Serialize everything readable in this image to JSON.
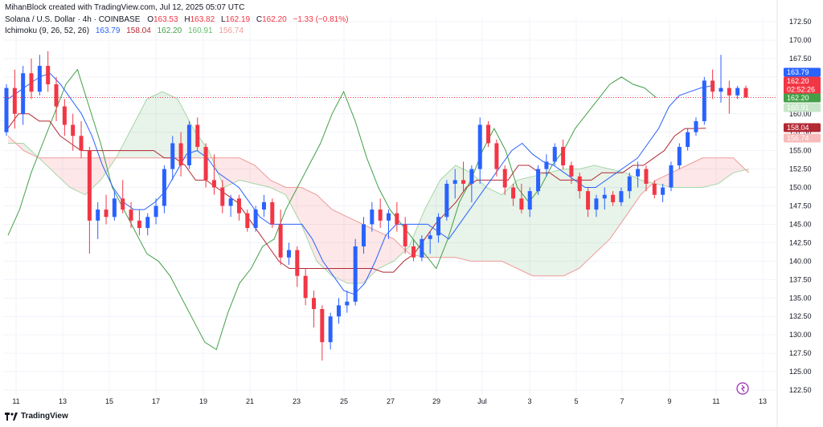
{
  "header": {
    "created_by": "MihanBlock created with TradingView.com, Jul 12, 2025 05:07 UTC",
    "symbol": "Solana / U.S. Dollar · 4h · COINBASE",
    "ohlc": {
      "o_label": "O",
      "o": "163.53",
      "h_label": "H",
      "h": "163.82",
      "l_label": "L",
      "l": "162.19",
      "c_label": "C",
      "c": "162.20",
      "change": "−1.33 (−0.81%)"
    },
    "indicator": {
      "name": "Ichimoku (9, 26, 52, 26)",
      "v1": "163.79",
      "v2": "158.04",
      "v3": "162.20",
      "v4": "160.91",
      "v5": "156.74"
    }
  },
  "footer": {
    "brand": "TradingView"
  },
  "price_tags": {
    "conversion": "163.79",
    "last": "162.20",
    "countdown": "02:52:26",
    "lagging": "162.20",
    "span_a": "160.91",
    "base": "158.04",
    "span_b": "156.74"
  },
  "colors": {
    "up": "#2962ff",
    "down": "#f23645",
    "conversion": "#2962ff",
    "base": "#b22833",
    "lagging": "#43a047",
    "span_a": "#a5d6a7",
    "span_b": "#ef9a9a",
    "cloud_bull": "#43a047",
    "cloud_bear": "#f23645",
    "tag_conversion": "#2962ff",
    "tag_last": "#f23645",
    "tag_lagging": "#43a047",
    "tag_span_a": "#c8e6c9",
    "tag_base": "#b22833",
    "tag_span_b": "#f8bbbb"
  },
  "chart_data": {
    "type": "candlestick",
    "y_axis_ticks": [
      "172.50",
      "170.00",
      "167.50",
      "165.00",
      "162.50",
      "160.00",
      "157.50",
      "155.00",
      "152.50",
      "150.00",
      "147.50",
      "145.00",
      "142.50",
      "140.00",
      "137.50",
      "135.00",
      "132.50",
      "130.00",
      "127.50",
      "125.00",
      "122.50"
    ],
    "ylim": [
      122.5,
      172.5
    ],
    "x_axis_ticks": [
      "11",
      "13",
      "15",
      "17",
      "19",
      "21",
      "23",
      "25",
      "27",
      "29",
      "Jul",
      "3",
      "5",
      "7",
      "9",
      "11",
      "13"
    ],
    "candles": [
      {
        "o": 157.5,
        "h": 164,
        "l": 157,
        "c": 163.5
      },
      {
        "o": 163.5,
        "h": 166,
        "l": 158,
        "c": 160
      },
      {
        "o": 160,
        "h": 166.5,
        "l": 158.5,
        "c": 165.5
      },
      {
        "o": 165.5,
        "h": 167.5,
        "l": 162,
        "c": 163
      },
      {
        "o": 163,
        "h": 168,
        "l": 162.5,
        "c": 166.5
      },
      {
        "o": 166.5,
        "h": 168.5,
        "l": 163,
        "c": 164
      },
      {
        "o": 164,
        "h": 165,
        "l": 159,
        "c": 161
      },
      {
        "o": 161,
        "h": 162,
        "l": 157,
        "c": 158.5
      },
      {
        "o": 158.5,
        "h": 160,
        "l": 155,
        "c": 157
      },
      {
        "o": 157,
        "h": 159,
        "l": 154,
        "c": 155
      },
      {
        "o": 155,
        "h": 155.5,
        "l": 141,
        "c": 145.5
      },
      {
        "o": 145.5,
        "h": 148,
        "l": 143,
        "c": 147
      },
      {
        "o": 147,
        "h": 149,
        "l": 145,
        "c": 146
      },
      {
        "o": 146,
        "h": 149.5,
        "l": 145.5,
        "c": 148.5
      },
      {
        "o": 148.5,
        "h": 151,
        "l": 146.5,
        "c": 147
      },
      {
        "o": 147,
        "h": 148,
        "l": 144.5,
        "c": 145.5
      },
      {
        "o": 145.5,
        "h": 147,
        "l": 143.5,
        "c": 144.5
      },
      {
        "o": 144.5,
        "h": 146.5,
        "l": 143.5,
        "c": 146
      },
      {
        "o": 146,
        "h": 148.5,
        "l": 145,
        "c": 147.5
      },
      {
        "o": 147.5,
        "h": 153,
        "l": 146.5,
        "c": 152.5
      },
      {
        "o": 152.5,
        "h": 157,
        "l": 151,
        "c": 156
      },
      {
        "o": 156,
        "h": 157.5,
        "l": 151.5,
        "c": 153
      },
      {
        "o": 153,
        "h": 159,
        "l": 152.5,
        "c": 158.5
      },
      {
        "o": 158.5,
        "h": 159.5,
        "l": 155,
        "c": 155.5
      },
      {
        "o": 155.5,
        "h": 156,
        "l": 150,
        "c": 151
      },
      {
        "o": 151,
        "h": 154.5,
        "l": 149,
        "c": 150
      },
      {
        "o": 150,
        "h": 151,
        "l": 146.5,
        "c": 147.5
      },
      {
        "o": 147.5,
        "h": 149,
        "l": 146,
        "c": 148.5
      },
      {
        "o": 148.5,
        "h": 149,
        "l": 145.5,
        "c": 146.5
      },
      {
        "o": 146.5,
        "h": 147,
        "l": 144,
        "c": 144.5
      },
      {
        "o": 144.5,
        "h": 147.5,
        "l": 144,
        "c": 147
      },
      {
        "o": 147,
        "h": 149,
        "l": 146,
        "c": 148
      },
      {
        "o": 148,
        "h": 148.5,
        "l": 144.5,
        "c": 145
      },
      {
        "o": 145,
        "h": 147,
        "l": 139.5,
        "c": 140.5
      },
      {
        "o": 140.5,
        "h": 142.5,
        "l": 139.5,
        "c": 141.5
      },
      {
        "o": 141.5,
        "h": 142,
        "l": 136.5,
        "c": 138
      },
      {
        "o": 138,
        "h": 139,
        "l": 134,
        "c": 135
      },
      {
        "o": 135,
        "h": 136,
        "l": 131,
        "c": 133.5
      },
      {
        "o": 133.5,
        "h": 134,
        "l": 126.5,
        "c": 129
      },
      {
        "o": 129,
        "h": 133,
        "l": 128,
        "c": 132.5
      },
      {
        "o": 132.5,
        "h": 135,
        "l": 131.5,
        "c": 134
      },
      {
        "o": 134,
        "h": 136,
        "l": 133,
        "c": 134.5
      },
      {
        "o": 134.5,
        "h": 143,
        "l": 134,
        "c": 142
      },
      {
        "o": 142,
        "h": 146,
        "l": 141,
        "c": 145
      },
      {
        "o": 145,
        "h": 148,
        "l": 144,
        "c": 147
      },
      {
        "o": 147,
        "h": 148.5,
        "l": 144.5,
        "c": 145.5
      },
      {
        "o": 145.5,
        "h": 147,
        "l": 143,
        "c": 146.5
      },
      {
        "o": 146.5,
        "h": 148,
        "l": 144,
        "c": 145
      },
      {
        "o": 145,
        "h": 146,
        "l": 141,
        "c": 142
      },
      {
        "o": 142,
        "h": 143,
        "l": 140,
        "c": 140.5
      },
      {
        "o": 140.5,
        "h": 143.5,
        "l": 140,
        "c": 143
      },
      {
        "o": 143,
        "h": 144,
        "l": 141,
        "c": 143.5
      },
      {
        "o": 143.5,
        "h": 146.5,
        "l": 142.5,
        "c": 146
      },
      {
        "o": 146,
        "h": 151,
        "l": 145.5,
        "c": 150.5
      },
      {
        "o": 150.5,
        "h": 152.5,
        "l": 148.5,
        "c": 151
      },
      {
        "o": 151,
        "h": 153.5,
        "l": 149.5,
        "c": 150.5
      },
      {
        "o": 150.5,
        "h": 153,
        "l": 148,
        "c": 152.5
      },
      {
        "o": 152.5,
        "h": 159.5,
        "l": 150.5,
        "c": 158.5
      },
      {
        "o": 158.5,
        "h": 159,
        "l": 155.5,
        "c": 156
      },
      {
        "o": 156,
        "h": 156.5,
        "l": 151.5,
        "c": 152.5
      },
      {
        "o": 152.5,
        "h": 153,
        "l": 149,
        "c": 150
      },
      {
        "o": 150,
        "h": 150.5,
        "l": 147.5,
        "c": 148.5
      },
      {
        "o": 148.5,
        "h": 150.5,
        "l": 146.5,
        "c": 147
      },
      {
        "o": 147,
        "h": 150,
        "l": 146,
        "c": 149.5
      },
      {
        "o": 149.5,
        "h": 153,
        "l": 149,
        "c": 152.5
      },
      {
        "o": 152.5,
        "h": 154.5,
        "l": 151.5,
        "c": 153.5
      },
      {
        "o": 153.5,
        "h": 156,
        "l": 153,
        "c": 155.5
      },
      {
        "o": 155.5,
        "h": 156.5,
        "l": 152.5,
        "c": 153
      },
      {
        "o": 153,
        "h": 153.5,
        "l": 150.5,
        "c": 151.5
      },
      {
        "o": 151.5,
        "h": 152,
        "l": 148.5,
        "c": 149.5
      },
      {
        "o": 149.5,
        "h": 150,
        "l": 146,
        "c": 147
      },
      {
        "o": 147,
        "h": 149,
        "l": 146,
        "c": 148.5
      },
      {
        "o": 148.5,
        "h": 150,
        "l": 147,
        "c": 149
      },
      {
        "o": 149,
        "h": 149.5,
        "l": 147.5,
        "c": 148
      },
      {
        "o": 148,
        "h": 150,
        "l": 147.5,
        "c": 149.5
      },
      {
        "o": 149.5,
        "h": 152,
        "l": 148.5,
        "c": 151.5
      },
      {
        "o": 151.5,
        "h": 153.5,
        "l": 150,
        "c": 152.5
      },
      {
        "o": 152.5,
        "h": 153,
        "l": 149.5,
        "c": 150.5
      },
      {
        "o": 150.5,
        "h": 151,
        "l": 148.5,
        "c": 149
      },
      {
        "o": 149,
        "h": 150.5,
        "l": 148,
        "c": 150
      },
      {
        "o": 150,
        "h": 153.5,
        "l": 149.5,
        "c": 153
      },
      {
        "o": 153,
        "h": 156,
        "l": 152.5,
        "c": 155.5
      },
      {
        "o": 155.5,
        "h": 158,
        "l": 155,
        "c": 157.5
      },
      {
        "o": 157.5,
        "h": 159.5,
        "l": 157,
        "c": 159
      },
      {
        "o": 159,
        "h": 165,
        "l": 158.5,
        "c": 164.5
      },
      {
        "o": 164.5,
        "h": 166,
        "l": 162,
        "c": 163
      },
      {
        "o": 163,
        "h": 168,
        "l": 161.5,
        "c": 163.5
      },
      {
        "o": 163.5,
        "h": 164.5,
        "l": 160,
        "c": 162.5
      },
      {
        "o": 162.5,
        "h": 163.8,
        "l": 162,
        "c": 163.5
      },
      {
        "o": 163.5,
        "h": 163.82,
        "l": 162.19,
        "c": 162.2
      }
    ],
    "ichimoku": {
      "conversion_line": [
        162,
        163,
        164,
        165,
        165.5,
        164,
        162,
        160,
        157,
        153,
        150,
        148,
        147,
        147,
        148,
        149.5,
        152,
        154.5,
        155,
        154,
        152,
        151,
        150,
        148,
        146,
        145,
        145,
        145,
        145,
        143,
        140,
        138,
        136,
        135.5,
        137,
        140,
        143.5,
        145,
        145,
        145,
        145,
        144,
        143,
        145,
        147,
        149,
        151,
        153,
        155,
        156,
        154.5,
        153.5,
        153,
        152,
        151,
        150,
        150,
        151,
        152,
        153,
        154,
        156,
        158,
        161,
        162.5,
        163,
        163.5,
        163.79
      ],
      "base_line": [
        158.04,
        160,
        160,
        159,
        159,
        157,
        156,
        155,
        155,
        155,
        155,
        155,
        155,
        155,
        155,
        154,
        154,
        153,
        151,
        151,
        150,
        149,
        148,
        146,
        144,
        142,
        140,
        139,
        139,
        139,
        139,
        139,
        139,
        139,
        139,
        139,
        138.5,
        138.5,
        140,
        141,
        143,
        145,
        146.5,
        148,
        150,
        151,
        151,
        151,
        151,
        153,
        153,
        152,
        152,
        151,
        151,
        151,
        151,
        152,
        152,
        152,
        153,
        153,
        154,
        155,
        157,
        158,
        158,
        158.04
      ],
      "lagging_span": [
        143.5,
        147,
        152,
        156,
        160,
        164,
        166,
        161,
        156,
        150,
        147,
        144,
        141,
        140,
        138,
        135,
        132,
        129,
        128,
        133,
        137,
        139,
        142,
        143,
        147,
        150,
        153,
        156,
        160,
        163,
        159,
        154,
        150,
        147,
        145,
        143,
        141,
        139,
        143,
        148,
        151,
        155,
        158,
        155,
        150,
        148,
        150,
        153,
        155,
        158,
        160,
        162,
        164,
        165,
        164,
        163.5,
        162.2
      ],
      "span_a": [
        156,
        156,
        154,
        152,
        150,
        149,
        151,
        154,
        158,
        162,
        163,
        162,
        158,
        155,
        150,
        151,
        150.5,
        150,
        149,
        145,
        140,
        138,
        137,
        137,
        139,
        140,
        142,
        147,
        151,
        153,
        152,
        150,
        149,
        151,
        151.5,
        152,
        152.5,
        152.5,
        153,
        152.5,
        152,
        151,
        150.5,
        150,
        150,
        150,
        150.5,
        152,
        152.5
      ],
      "span_b": [
        157,
        155,
        154,
        154,
        154,
        154,
        154,
        154,
        154,
        154,
        154,
        154,
        154,
        154,
        154,
        154,
        153,
        151,
        150,
        150,
        149,
        147,
        146,
        145,
        144,
        143,
        141,
        140.5,
        140.5,
        140.5,
        140,
        140,
        140,
        139,
        138,
        138,
        138,
        139,
        141,
        143,
        146,
        149,
        151,
        152,
        153,
        154,
        154,
        154,
        152
      ]
    }
  }
}
